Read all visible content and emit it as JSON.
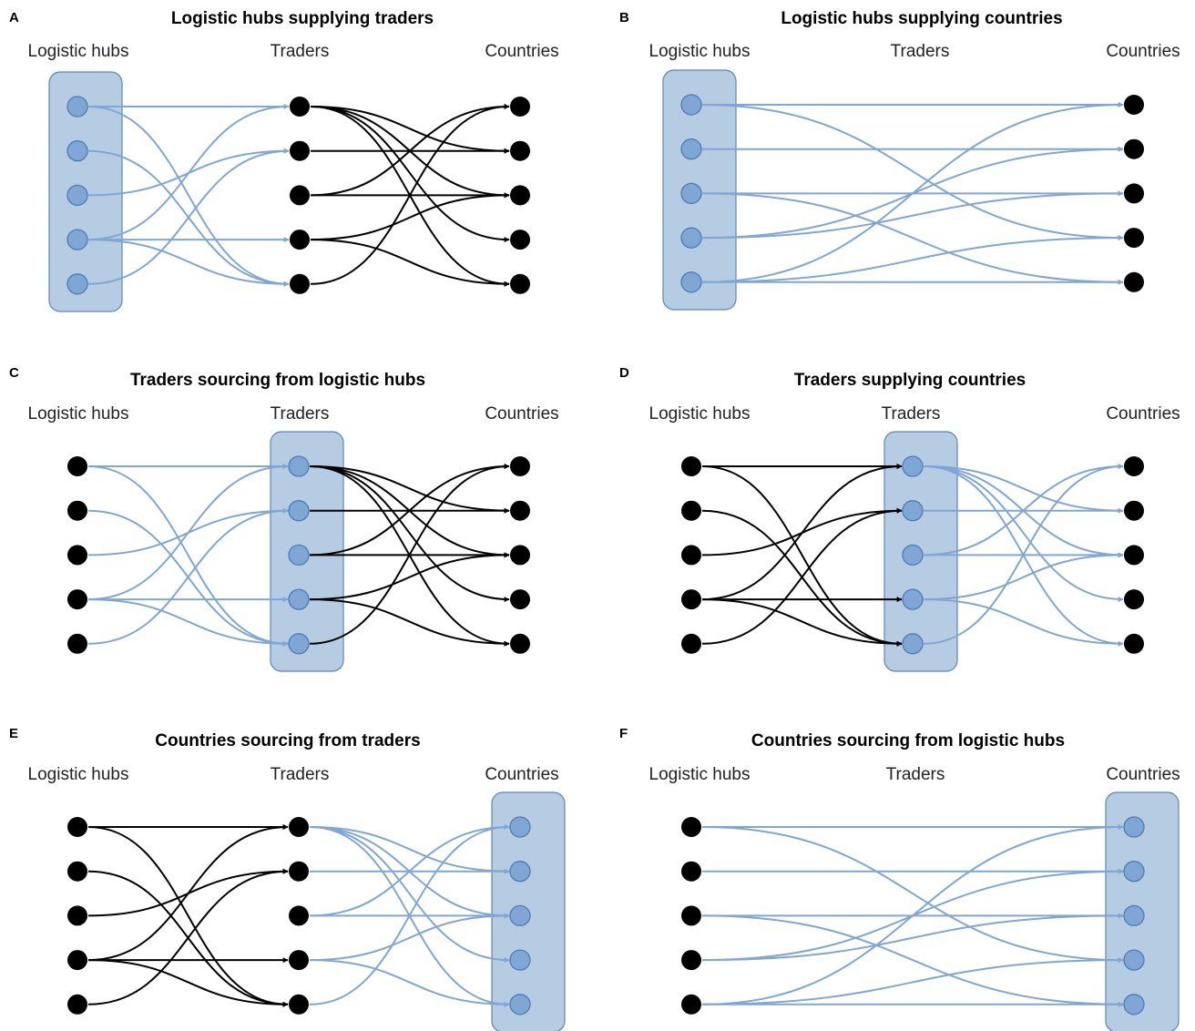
{
  "column_headers": [
    "Logistic hubs",
    "Traders",
    "Countries"
  ],
  "colors": {
    "highlight": "#7fa6d4",
    "highlight_box": "#b5cce3",
    "flow_other": "#000000"
  },
  "trader_links": [
    [
      0,
      0
    ],
    [
      0,
      4
    ],
    [
      1,
      4
    ],
    [
      2,
      1
    ],
    [
      3,
      0
    ],
    [
      3,
      3
    ],
    [
      3,
      4
    ],
    [
      4,
      1
    ]
  ],
  "country_links": [
    [
      0,
      1
    ],
    [
      0,
      2
    ],
    [
      0,
      3
    ],
    [
      0,
      4
    ],
    [
      1,
      1
    ],
    [
      2,
      0
    ],
    [
      2,
      2
    ],
    [
      3,
      2
    ],
    [
      3,
      4
    ],
    [
      4,
      0
    ]
  ],
  "hub_country_links": [
    [
      0,
      0
    ],
    [
      0,
      3
    ],
    [
      1,
      1
    ],
    [
      2,
      2
    ],
    [
      2,
      4
    ],
    [
      3,
      1
    ],
    [
      3,
      2
    ],
    [
      4,
      0
    ],
    [
      4,
      3
    ],
    [
      4,
      4
    ]
  ],
  "panels": [
    {
      "letter": "A",
      "title": "Logistic hubs supplying traders",
      "type": "three-tier",
      "highlight": "hubs"
    },
    {
      "letter": "B",
      "title": "Logistic hubs supplying countries",
      "type": "direct",
      "highlight": "hubs"
    },
    {
      "letter": "C",
      "title": "Traders sourcing from logistic hubs",
      "type": "three-tier",
      "highlight": "traders"
    },
    {
      "letter": "D",
      "title": "Traders supplying countries",
      "type": "three-tier",
      "highlight": "traders"
    },
    {
      "letter": "E",
      "title": "Countries sourcing from traders",
      "type": "three-tier",
      "highlight": "countries"
    },
    {
      "letter": "F",
      "title": "Countries sourcing from logistic hubs",
      "type": "direct",
      "highlight": "countries"
    }
  ]
}
